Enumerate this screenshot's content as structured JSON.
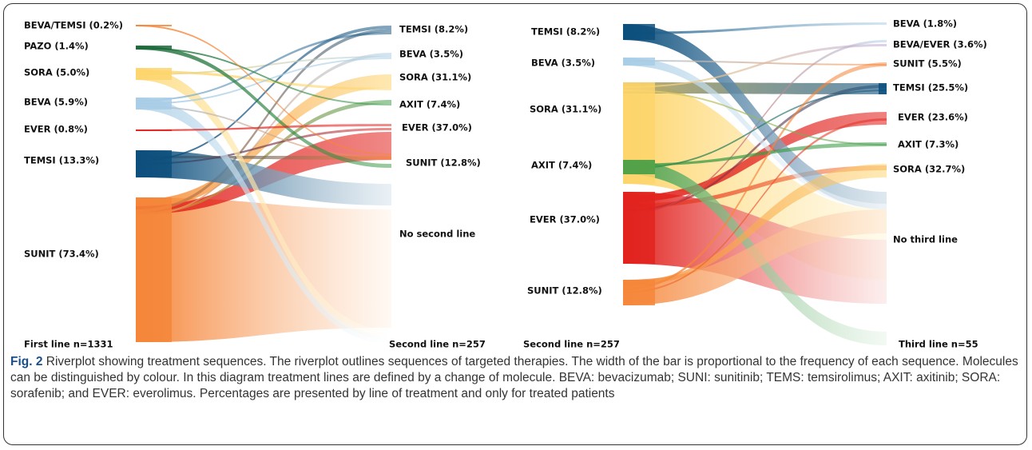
{
  "left_panel": {
    "source_nodes": [
      "BEVA/TEMSI (0.2%)",
      "PAZO (1.4%)",
      "SORA (5.0%)",
      "BEVA (5.9%)",
      "EVER (0.8%)",
      "TEMSI (13.3%)",
      "SUNIT (73.4%)"
    ],
    "target_nodes": [
      "TEMSI (8.2%)",
      "BEVA (3.5%)",
      "SORA (31.1%)",
      "AXIT (7.4%)",
      "EVER (37.0%)",
      "SUNIT (12.8%)",
      "No second line"
    ],
    "source_footer": "First line n=1331",
    "target_footer": "Second line n=257"
  },
  "right_panel": {
    "source_nodes": [
      "TEMSI (8.2%)",
      "BEVA (3.5%)",
      "SORA (31.1%)",
      "AXIT (7.4%)",
      "EVER (37.0%)",
      "SUNIT (12.8%)"
    ],
    "target_nodes": [
      "BEVA (1.8%)",
      "BEVA/EVER (3.6%)",
      "SUNIT (5.5%)",
      "TEMSI (25.5%)",
      "EVER (23.6%)",
      "AXIT (7.3%)",
      "SORA (32.7%)",
      "No third line"
    ],
    "source_footer": "Second line n=257",
    "target_footer": "Third line n=55"
  },
  "caption": {
    "label": "Fig. 2",
    "text": "Riverplot showing treatment sequences. The riverplot outlines sequences of targeted therapies. The width of the bar is proportional to the frequency of each sequence. Molecules can be distinguished by colour. In this diagram treatment lines are defined by a change of molecule. BEVA: bevacizumab; SUNI: sunitinib; TEMS: temsirolimus; AXIT: axitinib; SORA: sorafenib; and EVER: everolimus. Percentages are presented by line of treatment and only for treated patients"
  }
}
